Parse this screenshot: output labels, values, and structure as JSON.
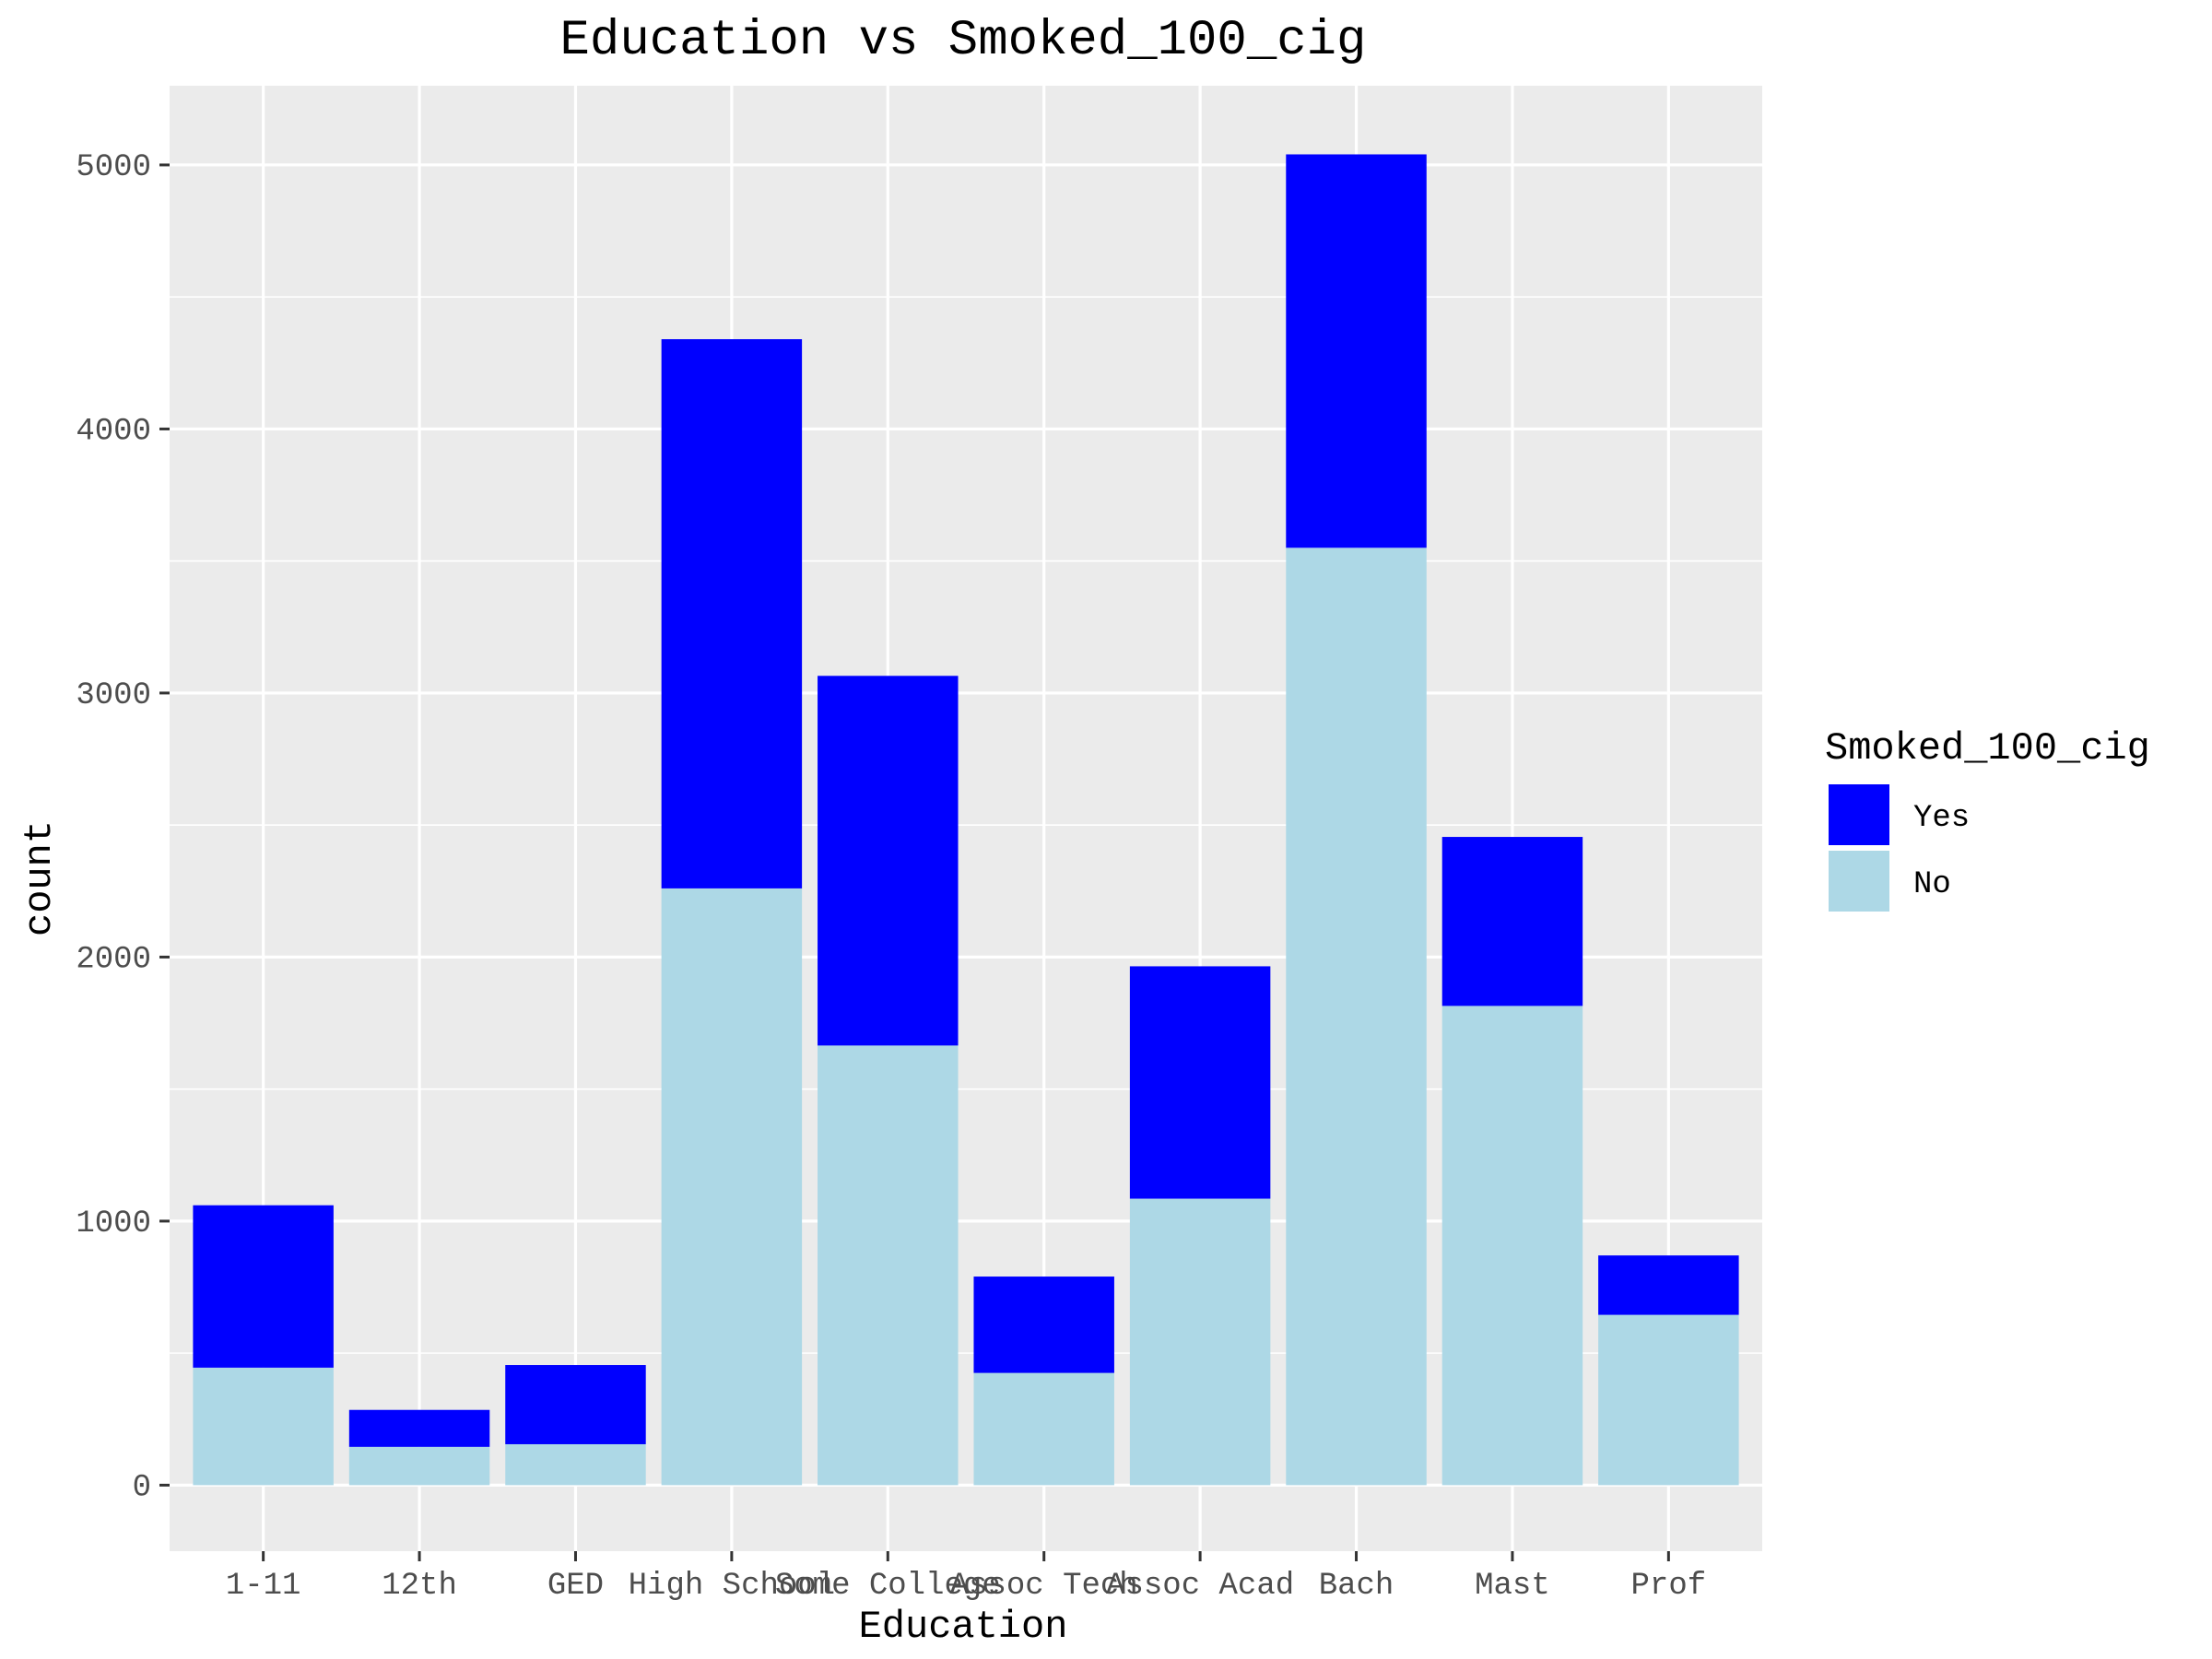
{
  "chart_data": {
    "type": "bar",
    "stacked": true,
    "title": "Education vs Smoked_100_cig",
    "xlabel": "Education",
    "ylabel": "count",
    "categories": [
      "1-11",
      "12th",
      "GED",
      "High School",
      "Some College",
      "Assoc Tech",
      "Assoc Acad",
      "Bach",
      "Mast",
      "Prof"
    ],
    "series": [
      {
        "name": "No",
        "color": "#add8e6",
        "values": [
          445,
          145,
          155,
          2260,
          1665,
          425,
          1085,
          3550,
          1815,
          645
        ]
      },
      {
        "name": "Yes",
        "color": "#0000ff",
        "values": [
          615,
          140,
          300,
          2080,
          1400,
          365,
          880,
          1490,
          640,
          225
        ]
      }
    ],
    "yticks": [
      "0",
      "1000",
      "2000",
      "3000",
      "4000",
      "5000"
    ],
    "ylim": [
      -250,
      5300
    ],
    "grid": true,
    "panel_background": "#ebebeb",
    "grid_color": "#ffffff",
    "legend": {
      "title": "Smoked_100_cig",
      "placement": "right",
      "entries": [
        {
          "label": "Yes",
          "color": "#0000ff"
        },
        {
          "label": "No",
          "color": "#add8e6"
        }
      ]
    }
  }
}
